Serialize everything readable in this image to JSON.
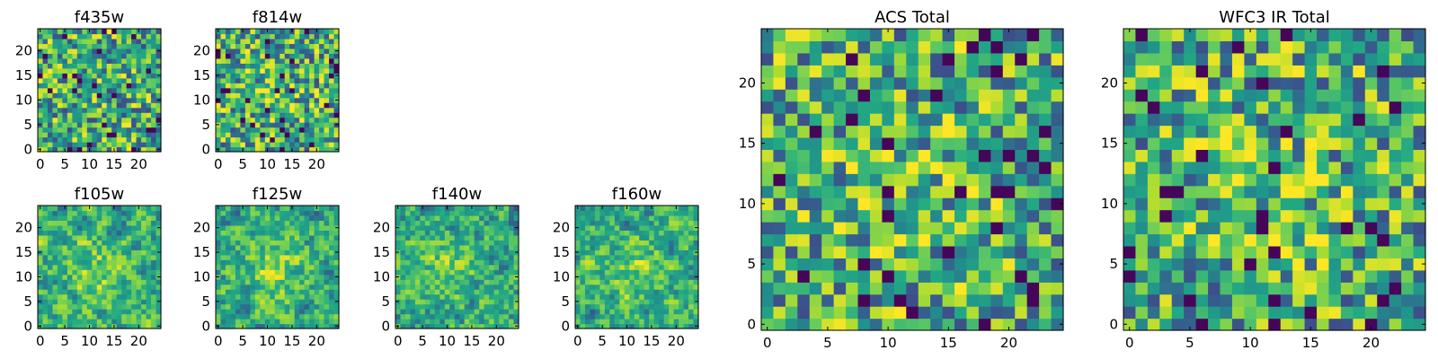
{
  "colormap": "viridis",
  "colors": {
    "dark": "#440154",
    "mid_blue": "#3b528b",
    "teal": "#21918c",
    "green": "#5ec962",
    "yellow": "#fde725"
  },
  "chart_data": [
    {
      "type": "heatmap",
      "title": "f435w",
      "size": 25,
      "seed": 11,
      "smooth": 0,
      "bias": 0.0,
      "xticks": [
        "0",
        "5",
        "10",
        "15",
        "20"
      ],
      "yticks": [
        "0",
        "5",
        "10",
        "15",
        "20"
      ]
    },
    {
      "type": "heatmap",
      "title": "f814w",
      "size": 25,
      "seed": 23,
      "smooth": 0,
      "bias": 0.08,
      "xticks": [
        "0",
        "5",
        "10",
        "15",
        "20"
      ],
      "yticks": [
        "0",
        "5",
        "10",
        "15",
        "20"
      ]
    },
    {
      "type": "heatmap",
      "title": "f105w",
      "size": 25,
      "seed": 37,
      "smooth": 1,
      "bias": 0.22,
      "xticks": [
        "0",
        "5",
        "10",
        "15",
        "20"
      ],
      "yticks": [
        "0",
        "5",
        "10",
        "15",
        "20"
      ]
    },
    {
      "type": "heatmap",
      "title": "f125w",
      "size": 25,
      "seed": 41,
      "smooth": 1,
      "bias": 0.22,
      "xticks": [
        "0",
        "5",
        "10",
        "15",
        "20"
      ],
      "yticks": [
        "0",
        "5",
        "10",
        "15",
        "20"
      ]
    },
    {
      "type": "heatmap",
      "title": "f140w",
      "size": 25,
      "seed": 53,
      "smooth": 1,
      "bias": 0.18,
      "xticks": [
        "0",
        "5",
        "10",
        "15",
        "20"
      ],
      "yticks": [
        "0",
        "5",
        "10",
        "15",
        "20"
      ]
    },
    {
      "type": "heatmap",
      "title": "f160w",
      "size": 25,
      "seed": 67,
      "smooth": 1,
      "bias": 0.18,
      "xticks": [
        "0",
        "5",
        "10",
        "15",
        "20"
      ],
      "yticks": [
        "0",
        "5",
        "10",
        "15",
        "20"
      ]
    },
    {
      "type": "heatmap",
      "title": "ACS Total",
      "size": 25,
      "seed": 79,
      "smooth": 0,
      "bias": 0.1,
      "xticks": [
        "0",
        "5",
        "10",
        "15",
        "20"
      ],
      "yticks": [
        "0",
        "5",
        "10",
        "15",
        "20"
      ]
    },
    {
      "type": "heatmap",
      "title": "WFC3 IR Total",
      "size": 25,
      "seed": 97,
      "smooth": 0,
      "bias": 0.12,
      "xticks": [
        "0",
        "5",
        "10",
        "15",
        "20"
      ],
      "yticks": [
        "0",
        "5",
        "10",
        "15",
        "20"
      ]
    }
  ]
}
